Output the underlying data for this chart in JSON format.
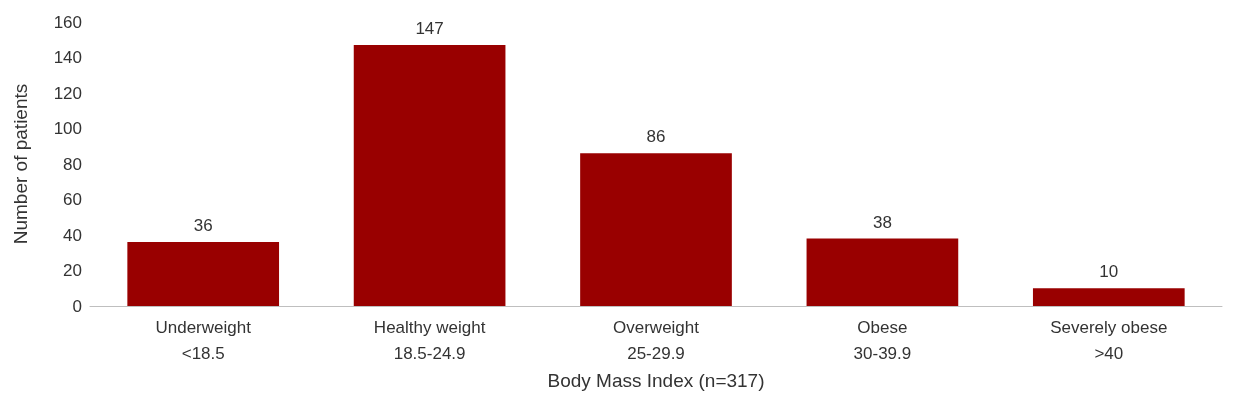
{
  "chart_data": {
    "type": "bar",
    "xlabel": "Body Mass Index (n=317)",
    "ylabel": "Number of patients",
    "categories": [
      "Underweight\n<18.5",
      "Healthy weight\n18.5-24.9",
      "Overweight\n25-29.9",
      "Obese\n30-39.9",
      "Severely obese\n>40"
    ],
    "values": [
      36,
      147,
      86,
      38,
      10
    ],
    "color": "#990000",
    "ylim": [
      0,
      160
    ],
    "yticks": [
      0,
      20,
      40,
      60,
      80,
      100,
      120,
      140,
      160
    ],
    "grid": false,
    "data_labels": true
  }
}
